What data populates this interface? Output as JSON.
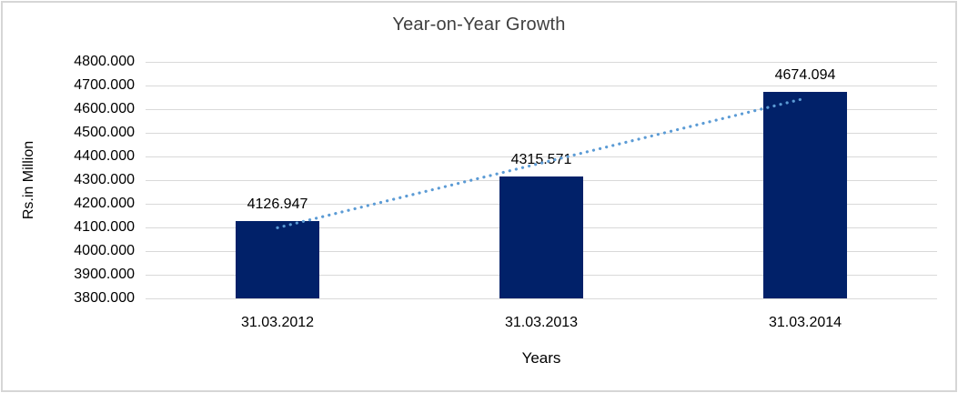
{
  "chart_data": {
    "type": "bar",
    "title": "Year-on-Year Growth",
    "categories": [
      "31.03.2012",
      "31.03.2013",
      "31.03.2014"
    ],
    "values": [
      4126.947,
      4315.571,
      4674.094
    ],
    "data_labels": [
      "4126.947",
      "4315.571",
      "4674.094"
    ],
    "xlabel": "Years",
    "ylabel": "Rs.in Million",
    "ylim": [
      3800,
      4800
    ],
    "ytick_step": 100,
    "ytick_decimals": 3,
    "grid": true,
    "legend": "none",
    "trendline": {
      "type": "linear",
      "style": "dotted"
    }
  },
  "colors": {
    "bar_fill": "#012169",
    "trendline": "#5b9bd5",
    "gridline": "#d9d9d9",
    "title_text": "#3f3f3f",
    "axis_text": "#000000",
    "frame_border": "#d6d6d6"
  }
}
